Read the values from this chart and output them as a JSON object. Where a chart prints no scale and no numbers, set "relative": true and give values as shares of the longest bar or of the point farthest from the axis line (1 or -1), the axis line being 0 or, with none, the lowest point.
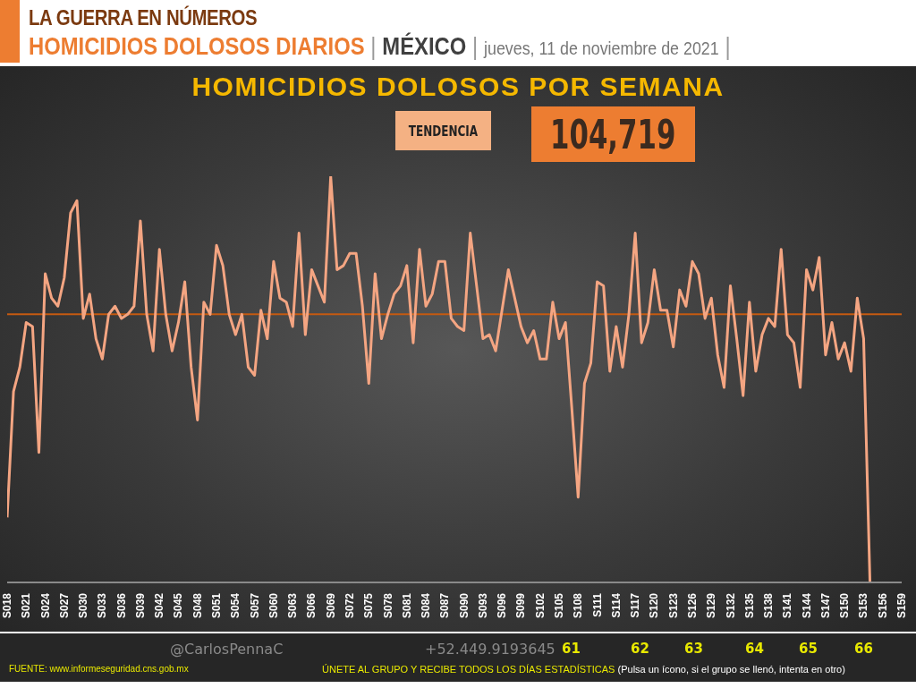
{
  "chart_data": {
    "type": "line",
    "title": "HOMICIDIOS DOLOSOS POR SEMANA",
    "relative": true,
    "marker": "none",
    "line_style": "solid",
    "categories": [
      "S018",
      null,
      null,
      "S021",
      null,
      null,
      "S024",
      null,
      null,
      "S027",
      null,
      null,
      "S030",
      null,
      null,
      "S033",
      null,
      null,
      "S036",
      null,
      null,
      "S039",
      null,
      null,
      "S042",
      null,
      null,
      "S045",
      null,
      null,
      "S048",
      null,
      null,
      "S051",
      null,
      null,
      "S054",
      null,
      null,
      "S057",
      null,
      null,
      "S060",
      null,
      null,
      "S063",
      null,
      null,
      "S066",
      null,
      null,
      "S069",
      null,
      null,
      "S072",
      null,
      null,
      "S075",
      null,
      null,
      "S078",
      null,
      null,
      "S081",
      null,
      null,
      "S084",
      null,
      null,
      "S087",
      null,
      null,
      "S090",
      null,
      null,
      "S093",
      null,
      null,
      "S096",
      null,
      null,
      "S099",
      null,
      null,
      "S102",
      null,
      null,
      "S105",
      null,
      null,
      "S108",
      null,
      null,
      "S111",
      null,
      null,
      "S114",
      null,
      null,
      "S117",
      null,
      null,
      "S120",
      null,
      null,
      "S123",
      null,
      null,
      "S126",
      null,
      null,
      "S129",
      null,
      null,
      "S132",
      null,
      null,
      "S135",
      null,
      null,
      "S138",
      null,
      null,
      "S141",
      null,
      null,
      "S144",
      null,
      null,
      "S147",
      null,
      null,
      "S150",
      null,
      null,
      "S153",
      null,
      null,
      "S156",
      null,
      null,
      "S159"
    ],
    "series": [
      {
        "color": "#f4a582",
        "values": [
          0.16,
          0.47,
          0.53,
          0.64,
          0.63,
          0.32,
          0.76,
          0.7,
          0.68,
          0.75,
          0.91,
          0.94,
          0.65,
          0.71,
          0.6,
          0.55,
          0.66,
          0.68,
          0.65,
          0.66,
          0.68,
          0.89,
          0.66,
          0.57,
          0.82,
          0.66,
          0.57,
          0.64,
          0.74,
          0.53,
          0.4,
          0.69,
          0.66,
          0.83,
          0.78,
          0.66,
          0.61,
          0.66,
          0.53,
          0.51,
          0.67,
          0.6,
          0.79,
          0.7,
          0.69,
          0.63,
          0.86,
          0.61,
          0.77,
          0.73,
          0.69,
          1,
          0.77,
          0.78,
          0.81,
          0.81,
          0.68,
          0.49,
          0.76,
          0.6,
          0.66,
          0.71,
          0.73,
          0.78,
          0.59,
          0.82,
          0.68,
          0.71,
          0.79,
          0.79,
          0.65,
          0.63,
          0.62,
          0.86,
          0.73,
          0.6,
          0.61,
          0.57,
          0.67,
          0.77,
          0.7,
          0.63,
          0.59,
          0.62,
          0.55,
          0.55,
          0.69,
          0.6,
          0.64,
          0.43,
          0.21,
          0.49,
          0.54,
          0.74,
          0.73,
          0.52,
          0.63,
          0.53,
          0.66,
          0.86,
          0.59,
          0.64,
          0.77,
          0.67,
          0.67,
          0.58,
          0.72,
          0.68,
          0.79,
          0.76,
          0.65,
          0.7,
          0.56,
          0.48,
          0.73,
          0.6,
          0.46,
          0.69,
          0.52,
          0.61,
          0.65,
          0.63,
          0.82,
          0.61,
          0.59,
          0.48,
          0.77,
          0.72,
          0.8,
          0.56,
          0.64,
          0.55,
          0.59,
          0.52,
          0.7,
          0.6,
          0,
          null,
          null,
          null,
          null,
          null
        ]
      }
    ],
    "ref_lines": [
      {
        "axis": "y",
        "value": 0.66,
        "color": "#c55a11"
      }
    ],
    "annotations": [
      "LA GUERRA EN NÚMEROS",
      "HOMICIDIOS DOLOSOS DIARIOS",
      "MÉXICO",
      "jueves, 11 de noviembre de 2021",
      "TENDENCIA",
      "104,719",
      "@CarlosPennaC",
      "+52.449.9193645",
      "61",
      "62",
      "63",
      "64",
      "65",
      "66",
      "FUENTE: www.informeseguridad.cns.gob.mx",
      "ÚNETE AL GRUPO Y RECIBE TODOS LOS DÍAS ESTADÍSTICAS",
      "(Pulsa un ícono, si el grupo se llenó, intenta en otro)",
      "|",
      "|",
      "|"
    ]
  }
}
